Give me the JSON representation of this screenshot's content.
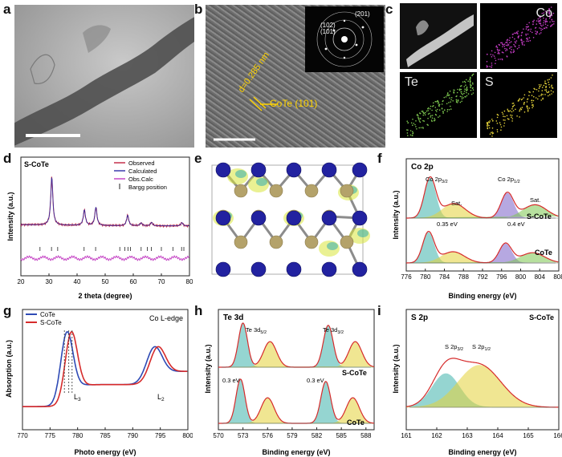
{
  "panels": {
    "a": {
      "label": "a"
    },
    "b": {
      "label": "b",
      "lattice": "d=0.285 nm",
      "plane": "CoTe (101)",
      "saed": [
        "(201)",
        "(102)",
        "(101)"
      ]
    },
    "c": {
      "label": "c",
      "maps": [
        "Co",
        "Te",
        "S"
      ]
    },
    "d": {
      "label": "d",
      "title": "S-CoTe",
      "legend": [
        "Observed",
        "Calculated",
        "Obs.Calc",
        "Bargg position"
      ]
    },
    "e": {
      "label": "e"
    },
    "f": {
      "label": "f",
      "title": "Co 2p",
      "annotations": {
        "peak1": "Co 2p",
        "peak1_sub": "3/2",
        "peak2": "Co 2p",
        "peak2_sub": "1/2",
        "sat1": "Sat.",
        "sat2": "Sat.",
        "shift1": "0.35 eV",
        "shift2": "0.4 eV",
        "sample_top": "S-CoTe",
        "sample_bottom": "CoTe"
      }
    },
    "g": {
      "label": "g",
      "title": "Co L-edge",
      "legend": [
        "CoTe",
        "S-CoTe"
      ],
      "annotations": {
        "l3": "L",
        "l3_sub": "3",
        "l2": "L",
        "l2_sub": "2"
      }
    },
    "h": {
      "label": "h",
      "title": "Te 3d",
      "annotations": {
        "peak1": "Te 3d",
        "peak1_sub": "5/2",
        "peak2": "Te 3d",
        "peak2_sub": "3/2",
        "shift1": "0.3 eV",
        "shift2": "0.3 eV",
        "sample_top": "S-CoTe",
        "sample_bottom": "CoTe"
      }
    },
    "i": {
      "label": "i",
      "title": "S 2p",
      "sample": "S-CoTe",
      "annotations": {
        "peak1": "S 2p",
        "peak1_sub": "3/2",
        "peak2": "S 2p",
        "peak2_sub": "1/2"
      }
    }
  },
  "colors": {
    "red": "#d62b2b",
    "blue": "#2e2ea6",
    "magenta": "#c23cc2",
    "yellow": "#e5d33a",
    "teal": "#3fb3ad",
    "purple": "#7b62c9",
    "green": "#7ec850",
    "cobalt": "#2222a0",
    "tellurium": "#b4a26a"
  },
  "chart_data": [
    {
      "id": "d",
      "type": "line",
      "title": "S-CoTe",
      "xlabel": "2 theta (degree)",
      "ylabel": "Intensity (a.u.)",
      "xlim": [
        20,
        80
      ],
      "x_ticks": [
        20,
        30,
        40,
        50,
        60,
        70,
        80
      ],
      "peaks": [
        {
          "x": 31.0,
          "height": 1.0
        },
        {
          "x": 42.6,
          "height": 0.32
        },
        {
          "x": 46.7,
          "height": 0.38
        },
        {
          "x": 58.0,
          "height": 0.22
        },
        {
          "x": 62.8,
          "height": 0.06
        },
        {
          "x": 66.5,
          "height": 0.07
        },
        {
          "x": 77.3,
          "height": 0.07
        }
      ],
      "bragg_positions": [
        26.8,
        30.9,
        33.1,
        42.5,
        46.6,
        55.2,
        57.0,
        58.1,
        59.0,
        62.8,
        65.0,
        66.4,
        70.0,
        74.1,
        77.2,
        78.0
      ],
      "series": [
        {
          "name": "Observed"
        },
        {
          "name": "Calculated"
        },
        {
          "name": "Obs.Calc"
        },
        {
          "name": "Bargg position"
        }
      ]
    },
    {
      "id": "f",
      "type": "line",
      "title": "Co 2p",
      "xlabel": "Binding energy (eV)",
      "ylabel": "Intensity (a.u.)",
      "xlim": [
        776,
        808
      ],
      "x_ticks": [
        776,
        780,
        784,
        788,
        792,
        796,
        800,
        804,
        808
      ],
      "series": [
        {
          "name": "S-CoTe",
          "peaks": [
            781.0,
            786.0,
            797.2,
            803.0
          ]
        },
        {
          "name": "CoTe",
          "peaks": [
            780.65,
            785.8,
            796.8,
            802.5
          ]
        }
      ]
    },
    {
      "id": "g",
      "type": "line",
      "title": "Co L-edge",
      "xlabel": "Photo energy (eV)",
      "ylabel": "Absorption (a.u.)",
      "xlim": [
        770,
        800
      ],
      "x_ticks": [
        770,
        775,
        780,
        785,
        790,
        795,
        800
      ],
      "series": [
        {
          "name": "CoTe",
          "peak_L3": 778.0,
          "peak_L2": 793.8
        },
        {
          "name": "S-CoTe",
          "peak_L3": 778.8,
          "peak_L2": 794.4
        }
      ]
    },
    {
      "id": "h",
      "type": "line",
      "title": "Te 3d",
      "xlabel": "Binding energy (eV)",
      "ylabel": "Intensity (a.u.)",
      "xlim": [
        570,
        589
      ],
      "x_ticks": [
        570,
        573,
        576,
        579,
        582,
        585,
        588
      ],
      "series": [
        {
          "name": "S-CoTe",
          "peaks": [
            573.0,
            576.3,
            583.4,
            586.7
          ]
        },
        {
          "name": "CoTe",
          "peaks": [
            572.7,
            576.0,
            583.1,
            586.4
          ]
        }
      ]
    },
    {
      "id": "i",
      "type": "line",
      "title": "S 2p",
      "xlabel": "Binding energy (eV)",
      "ylabel": "Intensity (a.u.)",
      "xlim": [
        161,
        166
      ],
      "x_ticks": [
        161,
        162,
        163,
        164,
        165,
        166
      ],
      "series": [
        {
          "name": "S-CoTe",
          "peaks": [
            162.3,
            163.4
          ]
        }
      ]
    }
  ]
}
